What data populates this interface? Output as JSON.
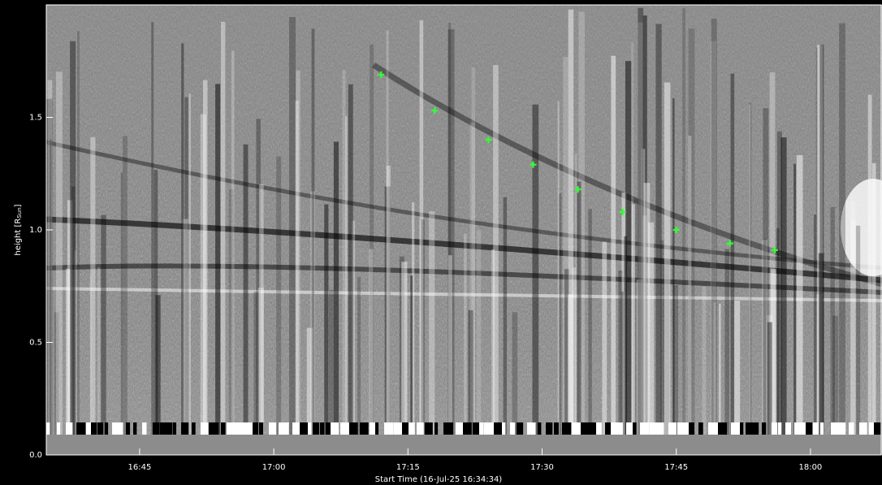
{
  "chart_data": {
    "type": "scatter",
    "x_label": "Start Time (16-Jul-25 16:34:34)",
    "y_label_parts": [
      "height [R",
      "Sun",
      "]"
    ],
    "x": [
      "17:12",
      "17:18",
      "17:24",
      "17:29",
      "17:34",
      "17:39",
      "17:45",
      "17:51",
      "17:56"
    ],
    "values": [
      1.69,
      1.53,
      1.4,
      1.29,
      1.18,
      1.08,
      1.0,
      0.94,
      0.91
    ],
    "color": "#33ff33",
    "xlim": [
      "16:34:34",
      "18:08"
    ],
    "xticks": [
      "16:45",
      "17:00",
      "17:15",
      "17:30",
      "17:45",
      "18:00"
    ],
    "ylim": [
      0,
      2.0
    ],
    "yticks": [
      {
        "value": 0,
        "label": "0.0"
      },
      {
        "value": 0.5,
        "label": "0.5"
      },
      {
        "value": 1,
        "label": "1.0"
      },
      {
        "value": 1.5,
        "label": "1.5"
      }
    ]
  }
}
